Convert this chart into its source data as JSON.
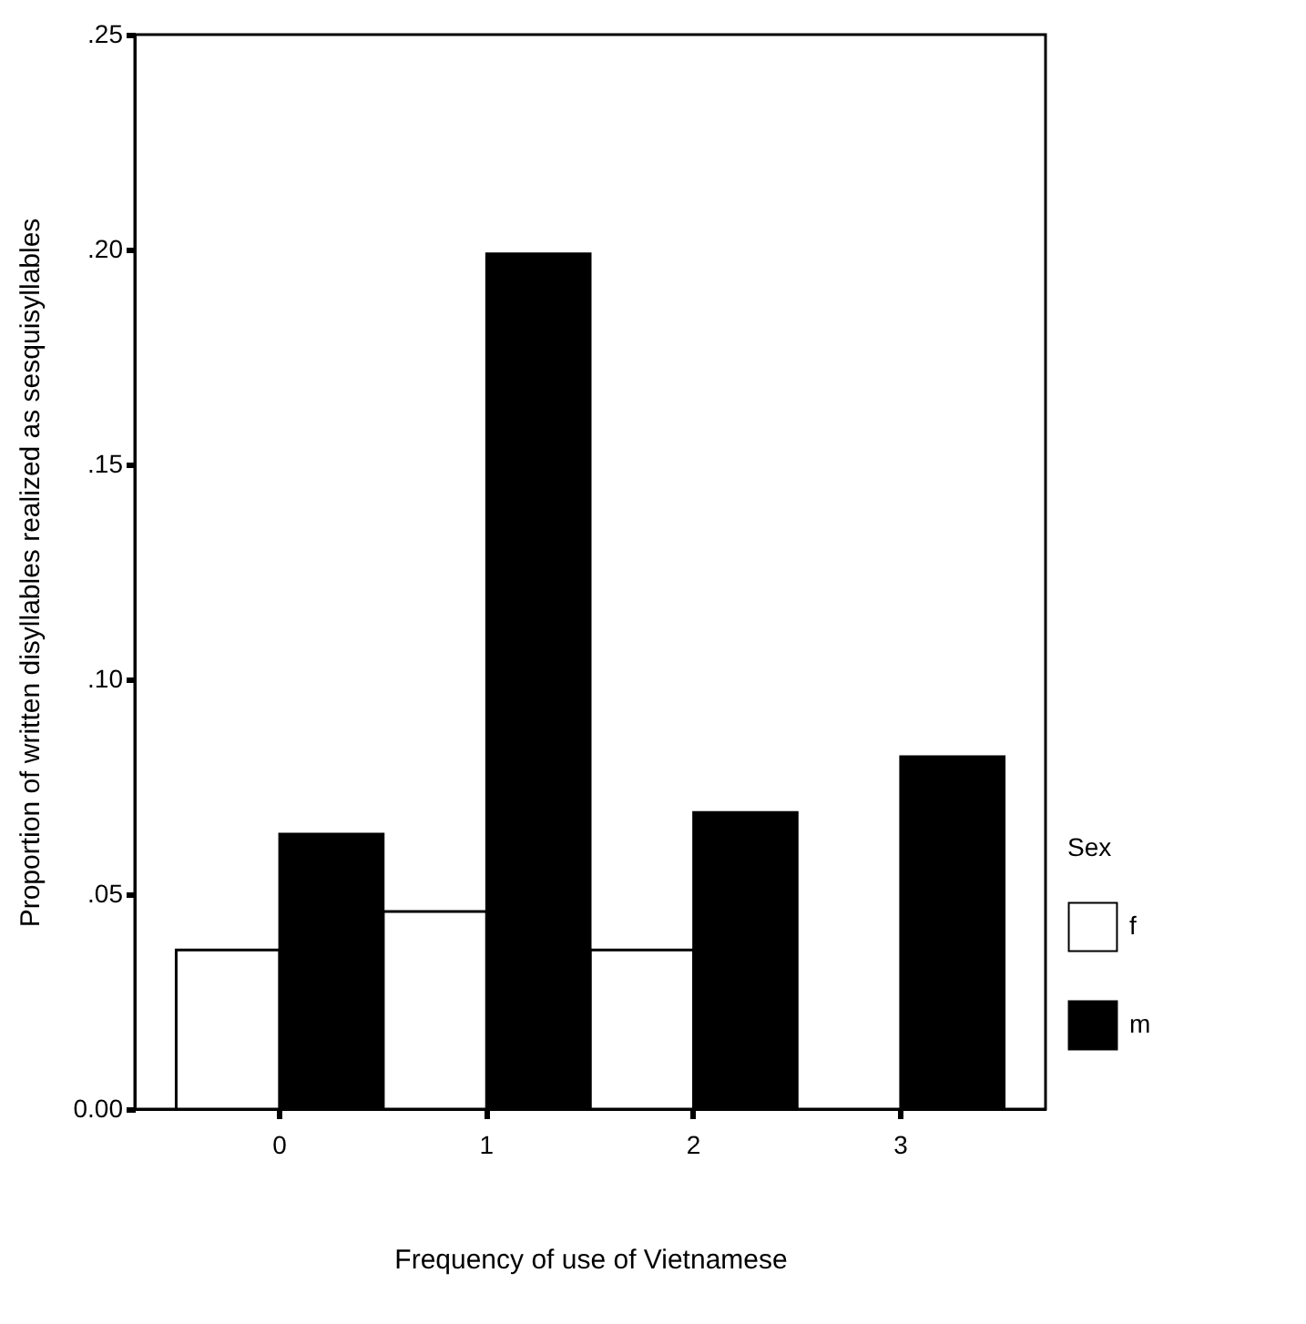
{
  "chart_data": {
    "type": "bar",
    "xlabel": "Frequency of use of Vietnamese",
    "ylabel": "Proportion of written disyllables realized as sesquisyllables",
    "legend_title": "Sex",
    "categories": [
      "0",
      "1",
      "2",
      "3"
    ],
    "series": [
      {
        "name": "f",
        "color": "#ffffff",
        "values": [
          0.037,
          0.046,
          0.037,
          null
        ]
      },
      {
        "name": "m",
        "color": "#000000",
        "values": [
          0.064,
          0.199,
          0.069,
          0.082
        ]
      }
    ],
    "ylim": [
      0,
      0.25
    ],
    "yticks": [
      {
        "value": 0,
        "label": "0.00"
      },
      {
        "value": 0.05,
        "label": ".05"
      },
      {
        "value": 0.1,
        "label": ".10"
      },
      {
        "value": 0.15,
        "label": ".15"
      },
      {
        "value": 0.2,
        "label": ".20"
      },
      {
        "value": 0.25,
        "label": ".25"
      }
    ],
    "grid": false,
    "legend": "right"
  }
}
